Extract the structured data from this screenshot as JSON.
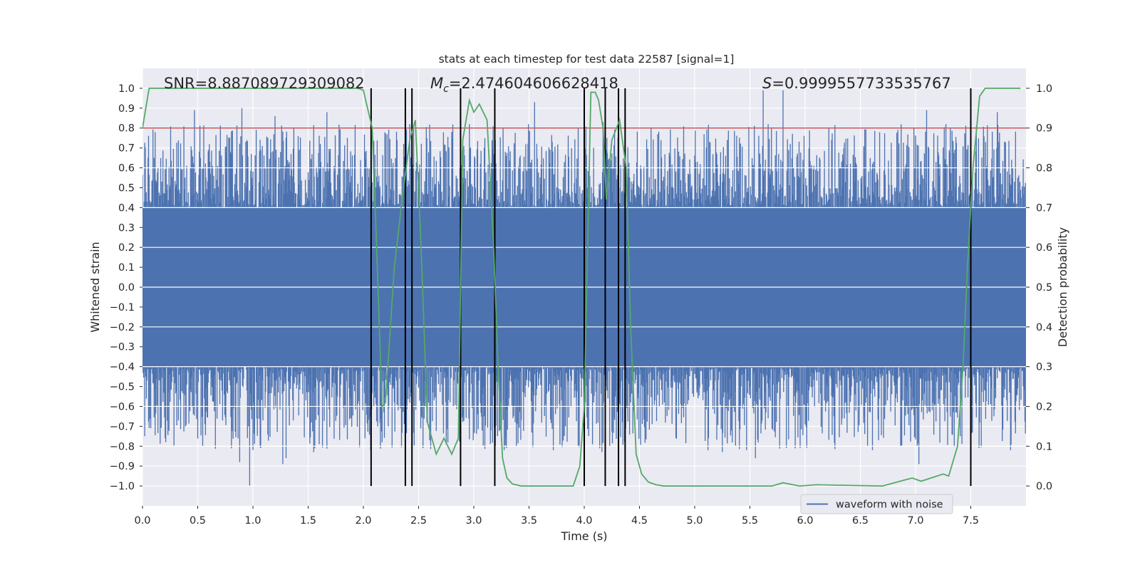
{
  "chart_data": {
    "type": "line",
    "title": "stats at each timestep for test data 22587 [signal=1]",
    "xlabel": "Time (s)",
    "ylabel": "Whitened strain",
    "y2label": "Detection probability",
    "xlim": [
      0.0,
      8.0
    ],
    "ylim": [
      -1.1,
      1.1
    ],
    "y2lim": [
      -0.05,
      1.05
    ],
    "xticks": [
      0.0,
      0.5,
      1.0,
      1.5,
      2.0,
      2.5,
      3.0,
      3.5,
      4.0,
      4.5,
      5.0,
      5.5,
      6.0,
      6.5,
      7.0,
      7.5
    ],
    "xtick_labels": [
      "0.0",
      "0.5",
      "1.0",
      "1.5",
      "2.0",
      "2.5",
      "3.0",
      "3.5",
      "4.0",
      "4.5",
      "5.0",
      "5.5",
      "6.0",
      "6.5",
      "7.0",
      "7.5"
    ],
    "yticks": [
      -1.0,
      -0.9,
      -0.8,
      -0.7,
      -0.6,
      -0.5,
      -0.4,
      -0.3,
      -0.2,
      -0.1,
      0.0,
      0.1,
      0.2,
      0.3,
      0.4,
      0.5,
      0.6,
      0.7,
      0.8,
      0.9,
      1.0
    ],
    "ytick_labels": [
      "−1.0",
      "−0.9",
      "−0.8",
      "−0.7",
      "−0.6",
      "−0.5",
      "−0.4",
      "−0.3",
      "−0.2",
      "−0.1",
      "0.0",
      "0.1",
      "0.2",
      "0.3",
      "0.4",
      "0.5",
      "0.6",
      "0.7",
      "0.8",
      "0.9",
      "1.0"
    ],
    "y2ticks": [
      0.0,
      0.1,
      0.2,
      0.3,
      0.4,
      0.5,
      0.6,
      0.7,
      0.8,
      0.9,
      1.0
    ],
    "y2tick_labels": [
      "0.0",
      "0.1",
      "0.2",
      "0.3",
      "0.4",
      "0.5",
      "0.6",
      "0.7",
      "0.8",
      "0.9",
      "1.0"
    ],
    "grid": true,
    "legend": {
      "entries": [
        "waveform with noise"
      ],
      "placement": "lower-right"
    },
    "colors": {
      "waveform": "#4c72b0",
      "probability": "#55a868",
      "threshold": "#c44e52",
      "markers": "#000000",
      "background": "#eaeaf2",
      "grid": "#ffffff"
    },
    "annotations": {
      "snr": "SNR=8.887089729309082",
      "mc_symbol": "M",
      "mc_sub": "c",
      "mc_value": "=2.474604606628418",
      "s_symbol": "S",
      "s_value": "=0.9999557733535767"
    },
    "waveform": {
      "name": "waveform with noise",
      "envelope_upper": 0.4,
      "envelope_lower": -0.4,
      "spike_peaks": [
        {
          "x": 0.47,
          "y": 0.89
        },
        {
          "x": 0.9,
          "y": 0.9
        },
        {
          "x": 1.2,
          "y": 0.86
        },
        {
          "x": 1.67,
          "y": 0.88
        },
        {
          "x": 2.42,
          "y": 0.82
        },
        {
          "x": 3.55,
          "y": 0.93
        },
        {
          "x": 5.62,
          "y": 0.99
        },
        {
          "x": 5.8,
          "y": 0.99
        },
        {
          "x": 7.1,
          "y": 0.89
        },
        {
          "x": 7.74,
          "y": 0.88
        },
        {
          "x": 4.17,
          "y": 0.83
        },
        {
          "x": 2.8,
          "y": 0.78
        }
      ],
      "spike_troughs": [
        {
          "x": 0.97,
          "y": -1.0
        },
        {
          "x": 0.88,
          "y": -0.88
        },
        {
          "x": 1.27,
          "y": -0.89
        },
        {
          "x": 1.3,
          "y": -0.86
        },
        {
          "x": 1.55,
          "y": -0.83
        },
        {
          "x": 0.66,
          "y": -0.73
        },
        {
          "x": 2.38,
          "y": -0.8
        },
        {
          "x": 4.16,
          "y": -0.83
        },
        {
          "x": 4.55,
          "y": -0.75
        },
        {
          "x": 5.12,
          "y": -0.82
        },
        {
          "x": 5.25,
          "y": -0.83
        },
        {
          "x": 5.55,
          "y": -0.86
        },
        {
          "x": 7.03,
          "y": -0.89
        },
        {
          "x": 7.86,
          "y": -0.82
        },
        {
          "x": 0.02,
          "y": -0.75
        }
      ]
    },
    "probability": {
      "name": "detection probability",
      "x": [
        0.0,
        0.06,
        0.1,
        0.5,
        1.0,
        1.5,
        1.95,
        2.0,
        2.08,
        2.12,
        2.17,
        2.2,
        2.28,
        2.35,
        2.42,
        2.47,
        2.52,
        2.58,
        2.66,
        2.73,
        2.8,
        2.86,
        2.9,
        2.96,
        3.0,
        3.05,
        3.12,
        3.18,
        3.22,
        3.26,
        3.3,
        3.35,
        3.43,
        3.5,
        3.7,
        3.9,
        3.96,
        4.0,
        4.06,
        4.1,
        4.13,
        4.17,
        4.2,
        4.25,
        4.32,
        4.38,
        4.42,
        4.47,
        4.52,
        4.58,
        4.65,
        4.72,
        5.0,
        5.3,
        5.7,
        5.8,
        5.95,
        6.1,
        6.7,
        6.9,
        6.97,
        7.05,
        7.25,
        7.3,
        7.38,
        7.43,
        7.47,
        7.52,
        7.58,
        7.63,
        7.8,
        7.95
      ],
      "y": [
        0.9,
        1.0,
        1.0,
        1.0,
        1.0,
        1.0,
        1.0,
        0.995,
        0.9,
        0.6,
        0.2,
        0.21,
        0.55,
        0.72,
        0.87,
        0.92,
        0.62,
        0.16,
        0.08,
        0.12,
        0.08,
        0.12,
        0.87,
        0.97,
        0.94,
        0.96,
        0.92,
        0.6,
        0.3,
        0.07,
        0.02,
        0.005,
        0.0,
        0.0,
        0.0,
        0.0,
        0.05,
        0.2,
        0.99,
        0.99,
        0.97,
        0.9,
        0.72,
        0.87,
        0.92,
        0.8,
        0.4,
        0.08,
        0.03,
        0.01,
        0.003,
        0.0,
        0.0,
        0.0,
        0.0,
        0.008,
        0.0,
        0.003,
        0.0,
        0.015,
        0.02,
        0.012,
        0.03,
        0.025,
        0.1,
        0.3,
        0.55,
        0.8,
        0.98,
        1.0,
        1.0,
        1.0
      ]
    },
    "threshold": {
      "y2": 0.9
    },
    "vertical_markers": [
      2.07,
      2.38,
      2.44,
      2.88,
      3.19,
      4.0,
      4.19,
      4.31,
      4.37,
      7.5
    ]
  }
}
